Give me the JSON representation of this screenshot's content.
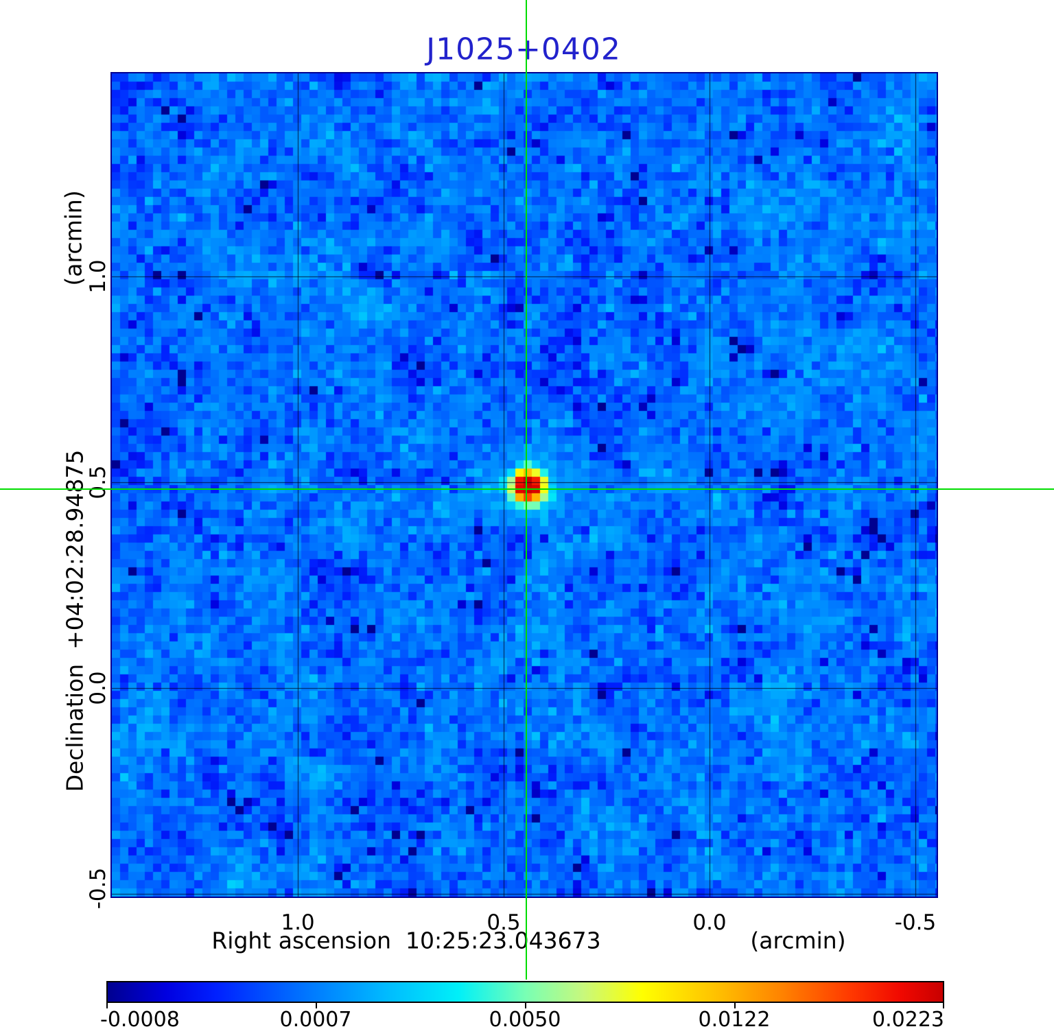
{
  "title": {
    "text": "J1025+0402",
    "color": "#2222cc"
  },
  "y_axis": {
    "unit_label": "(arcmin)",
    "title": "Declination  +04:02:28.94875",
    "tick_labels": [
      "1.0",
      "0.5",
      "0.0",
      "-0.5"
    ]
  },
  "x_axis": {
    "title": "Right ascension  10:25:23.043673",
    "unit_label": "(arcmin)",
    "tick_labels": [
      "1.0",
      "0.5",
      "0.0",
      "-0.5"
    ]
  },
  "crosshair": {
    "color": "#00dd00",
    "ra": "10:25:23.043673",
    "dec": "+04:02:28.94875"
  },
  "image": {
    "border_color": "#000090",
    "grid_color": "rgba(0,0,25,0.8)"
  },
  "colorbar": {
    "tick_labels": [
      "-0.0008",
      "0.0007",
      "0.0050",
      "0.0122",
      "0.0223"
    ],
    "gradient_stops": [
      [
        0.0,
        "#000090"
      ],
      [
        0.07,
        "#0000e0"
      ],
      [
        0.13,
        "#0020ff"
      ],
      [
        0.23,
        "#0070ff"
      ],
      [
        0.33,
        "#00b8ff"
      ],
      [
        0.42,
        "#00f0f8"
      ],
      [
        0.5,
        "#78ffb4"
      ],
      [
        0.57,
        "#c8f87c"
      ],
      [
        0.64,
        "#ffff00"
      ],
      [
        0.73,
        "#ffc000"
      ],
      [
        0.81,
        "#ff8000"
      ],
      [
        0.89,
        "#ff3800"
      ],
      [
        0.95,
        "#f00800"
      ],
      [
        1.0,
        "#c80000"
      ]
    ]
  },
  "chart_data": {
    "type": "heatmap",
    "title": "J1025+0402",
    "xlabel": "Right ascension 10:25:23.043673 (arcmin)",
    "ylabel": "Declination +04:02:28.94875 (arcmin)",
    "x_ticks_arcmin": [
      1.0,
      0.5,
      0.0,
      -0.5
    ],
    "y_ticks_arcmin": [
      -0.5,
      0.0,
      0.5,
      1.0
    ],
    "x_range_arcmin": [
      1.45,
      -0.55
    ],
    "y_range_arcmin": [
      -0.51,
      1.49
    ],
    "grid": true,
    "colorbar_ticks": [
      -0.0008,
      0.0007,
      0.005,
      0.0122,
      0.0223
    ],
    "colorbar_scale": "sqrt-like (ticks evenly spaced, quadratic in value)",
    "colormap": "rainbow: dark blue - blue - cyan - pale green - yellow - orange - red - dark red",
    "background": "blocky blue noise, typical pixel value ~0.0005",
    "source": {
      "name": "J1025+0402",
      "ra": "10:25:23.043673",
      "dec": "+04:02:28.94875",
      "x_offset_arcmin": 0.445,
      "y_offset_arcmin": 0.483,
      "peak_value": 0.0223,
      "marker": "full-frame green crosshair centered on compact red point source"
    }
  }
}
